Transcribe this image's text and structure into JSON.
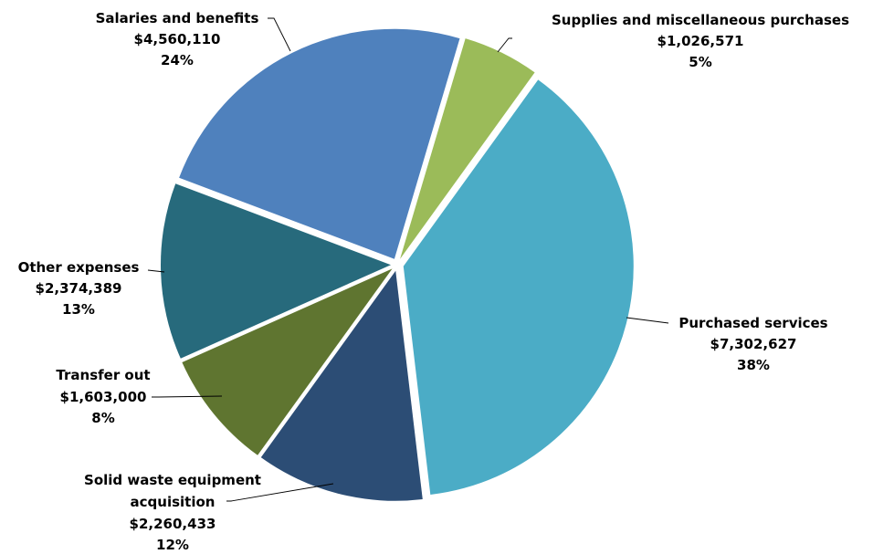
{
  "chart_data": {
    "type": "pie",
    "slices": [
      {
        "label": "Supplies and miscellaneous purchases",
        "value": 1026571,
        "value_label": "$1,026,571",
        "percent_label": "5%",
        "color": "#9bbb59"
      },
      {
        "label": "Purchased services",
        "value": 7302627,
        "value_label": "$7,302,627",
        "percent_label": "38%",
        "color": "#4bacc6"
      },
      {
        "label": "Solid waste equipment acquisition",
        "value": 2260433,
        "value_label": "$2,260,433",
        "percent_label": "12%",
        "color": "#2c4d75"
      },
      {
        "label": "Transfer out",
        "value": 1603000,
        "value_label": "$1,603,000",
        "percent_label": "8%",
        "color": "#5f7530"
      },
      {
        "label": "Other expenses",
        "value": 2374389,
        "value_label": "$2,374,389",
        "percent_label": "13%",
        "color": "#276a7c"
      },
      {
        "label": "Salaries and benefits",
        "value": 4560110,
        "value_label": "$4,560,110",
        "percent_label": "24%",
        "color": "#4f81bd"
      }
    ],
    "start_angle_deg": 16.5,
    "direction": "clockwise",
    "exploded": true,
    "legend": "none"
  }
}
